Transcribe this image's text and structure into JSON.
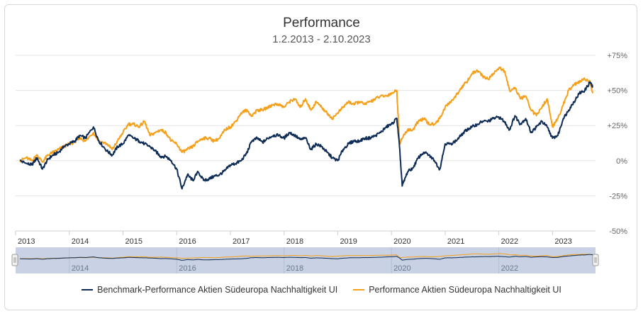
{
  "chart_data": {
    "type": "line",
    "title": "Performance",
    "subtitle": "1.2.2013 - 2.10.2023",
    "y_ticks": [
      "+75%",
      "+50%",
      "+25%",
      "0%",
      "-25%",
      "-50%"
    ],
    "y_tick_values": [
      75,
      50,
      25,
      0,
      -25,
      -50
    ],
    "ylim": [
      -50,
      75
    ],
    "xlim": [
      2013.0,
      2023.8
    ],
    "x_ticks": [
      "2013",
      "2014",
      "2015",
      "2016",
      "2017",
      "2018",
      "2019",
      "2020",
      "2021",
      "2022",
      "2023"
    ],
    "navigator_ticks": [
      "2014",
      "2016",
      "2018",
      "2020",
      "2022"
    ],
    "grid": true,
    "legend_position": "bottom",
    "series": [
      {
        "name": "Benchmark-Performance Aktien Südeuropa Nachhaltigkeit UI",
        "color": "#0d2b55",
        "x": [
          2013.08,
          2013.2,
          2013.3,
          2013.4,
          2013.5,
          2013.6,
          2013.7,
          2013.8,
          2013.9,
          2014.0,
          2014.1,
          2014.2,
          2014.3,
          2014.45,
          2014.55,
          2014.7,
          2014.8,
          2014.9,
          2015.0,
          2015.1,
          2015.2,
          2015.3,
          2015.4,
          2015.5,
          2015.6,
          2015.7,
          2015.8,
          2015.9,
          2016.0,
          2016.1,
          2016.2,
          2016.3,
          2016.4,
          2016.5,
          2016.6,
          2016.7,
          2016.8,
          2016.9,
          2017.0,
          2017.1,
          2017.2,
          2017.3,
          2017.4,
          2017.5,
          2017.6,
          2017.7,
          2017.8,
          2017.9,
          2018.0,
          2018.1,
          2018.2,
          2018.3,
          2018.4,
          2018.5,
          2018.6,
          2018.7,
          2018.8,
          2018.9,
          2019.0,
          2019.1,
          2019.2,
          2019.3,
          2019.4,
          2019.5,
          2019.6,
          2019.7,
          2019.8,
          2019.9,
          2020.0,
          2020.1,
          2020.15,
          2020.2,
          2020.3,
          2020.4,
          2020.5,
          2020.6,
          2020.7,
          2020.8,
          2020.9,
          2021.0,
          2021.1,
          2021.2,
          2021.3,
          2021.4,
          2021.5,
          2021.6,
          2021.7,
          2021.8,
          2021.9,
          2022.0,
          2022.1,
          2022.2,
          2022.3,
          2022.4,
          2022.5,
          2022.6,
          2022.7,
          2022.8,
          2022.9,
          2023.0,
          2023.1,
          2023.2,
          2023.3,
          2023.4,
          2023.5,
          2023.6,
          2023.7,
          2023.75
        ],
        "values": [
          0,
          -2,
          -3,
          2,
          -6,
          1,
          4,
          6,
          10,
          12,
          14,
          18,
          16,
          24,
          14,
          7,
          4,
          10,
          12,
          18,
          16,
          14,
          12,
          10,
          7,
          3,
          3,
          0,
          -6,
          -20,
          -10,
          -14,
          -8,
          -14,
          -13,
          -11,
          -10,
          -7,
          -3,
          -2,
          0,
          5,
          14,
          16,
          13,
          16,
          18,
          18,
          16,
          20,
          18,
          15,
          16,
          8,
          12,
          10,
          6,
          2,
          0,
          8,
          12,
          14,
          14,
          16,
          16,
          18,
          20,
          24,
          26,
          30,
          10,
          -18,
          -8,
          -5,
          2,
          6,
          4,
          0,
          -6,
          12,
          12,
          14,
          18,
          22,
          24,
          26,
          28,
          28,
          30,
          31,
          28,
          22,
          32,
          26,
          30,
          20,
          24,
          28,
          24,
          16,
          18,
          30,
          36,
          42,
          48,
          50,
          56,
          52
        ]
      },
      {
        "name": "Performance Aktien Südeuropa Nachhaltigkeit UI",
        "color": "#f5a01a",
        "x": [
          2013.08,
          2013.2,
          2013.3,
          2013.4,
          2013.5,
          2013.6,
          2013.7,
          2013.8,
          2013.9,
          2014.0,
          2014.1,
          2014.2,
          2014.3,
          2014.45,
          2014.55,
          2014.7,
          2014.8,
          2014.9,
          2015.0,
          2015.1,
          2015.2,
          2015.3,
          2015.4,
          2015.5,
          2015.6,
          2015.7,
          2015.8,
          2015.9,
          2016.0,
          2016.1,
          2016.2,
          2016.3,
          2016.4,
          2016.5,
          2016.6,
          2016.7,
          2016.8,
          2016.9,
          2017.0,
          2017.1,
          2017.2,
          2017.3,
          2017.4,
          2017.5,
          2017.6,
          2017.7,
          2017.8,
          2017.9,
          2018.0,
          2018.1,
          2018.2,
          2018.3,
          2018.4,
          2018.5,
          2018.6,
          2018.7,
          2018.8,
          2018.9,
          2019.0,
          2019.1,
          2019.2,
          2019.3,
          2019.4,
          2019.5,
          2019.6,
          2019.7,
          2019.8,
          2019.9,
          2020.0,
          2020.1,
          2020.15,
          2020.2,
          2020.3,
          2020.4,
          2020.5,
          2020.6,
          2020.7,
          2020.8,
          2020.9,
          2021.0,
          2021.1,
          2021.2,
          2021.3,
          2021.4,
          2021.5,
          2021.6,
          2021.7,
          2021.8,
          2021.9,
          2022.0,
          2022.1,
          2022.2,
          2022.3,
          2022.4,
          2022.5,
          2022.6,
          2022.7,
          2022.8,
          2022.9,
          2023.0,
          2023.1,
          2023.2,
          2023.3,
          2023.4,
          2023.5,
          2023.6,
          2023.7,
          2023.75
        ],
        "values": [
          0,
          2,
          0,
          4,
          -1,
          4,
          6,
          8,
          10,
          12,
          13,
          16,
          14,
          20,
          14,
          12,
          8,
          14,
          20,
          26,
          26,
          24,
          28,
          18,
          20,
          22,
          20,
          14,
          12,
          6,
          8,
          10,
          14,
          16,
          16,
          14,
          16,
          22,
          24,
          28,
          34,
          36,
          32,
          36,
          36,
          38,
          40,
          40,
          38,
          42,
          44,
          38,
          44,
          36,
          42,
          38,
          34,
          30,
          34,
          38,
          42,
          40,
          42,
          40,
          42,
          44,
          46,
          46,
          48,
          50,
          12,
          16,
          22,
          22,
          28,
          30,
          26,
          26,
          30,
          38,
          42,
          46,
          52,
          56,
          62,
          64,
          60,
          58,
          62,
          66,
          64,
          50,
          52,
          44,
          46,
          36,
          32,
          38,
          44,
          24,
          30,
          40,
          50,
          54,
          56,
          58,
          56,
          48
        ]
      }
    ]
  }
}
